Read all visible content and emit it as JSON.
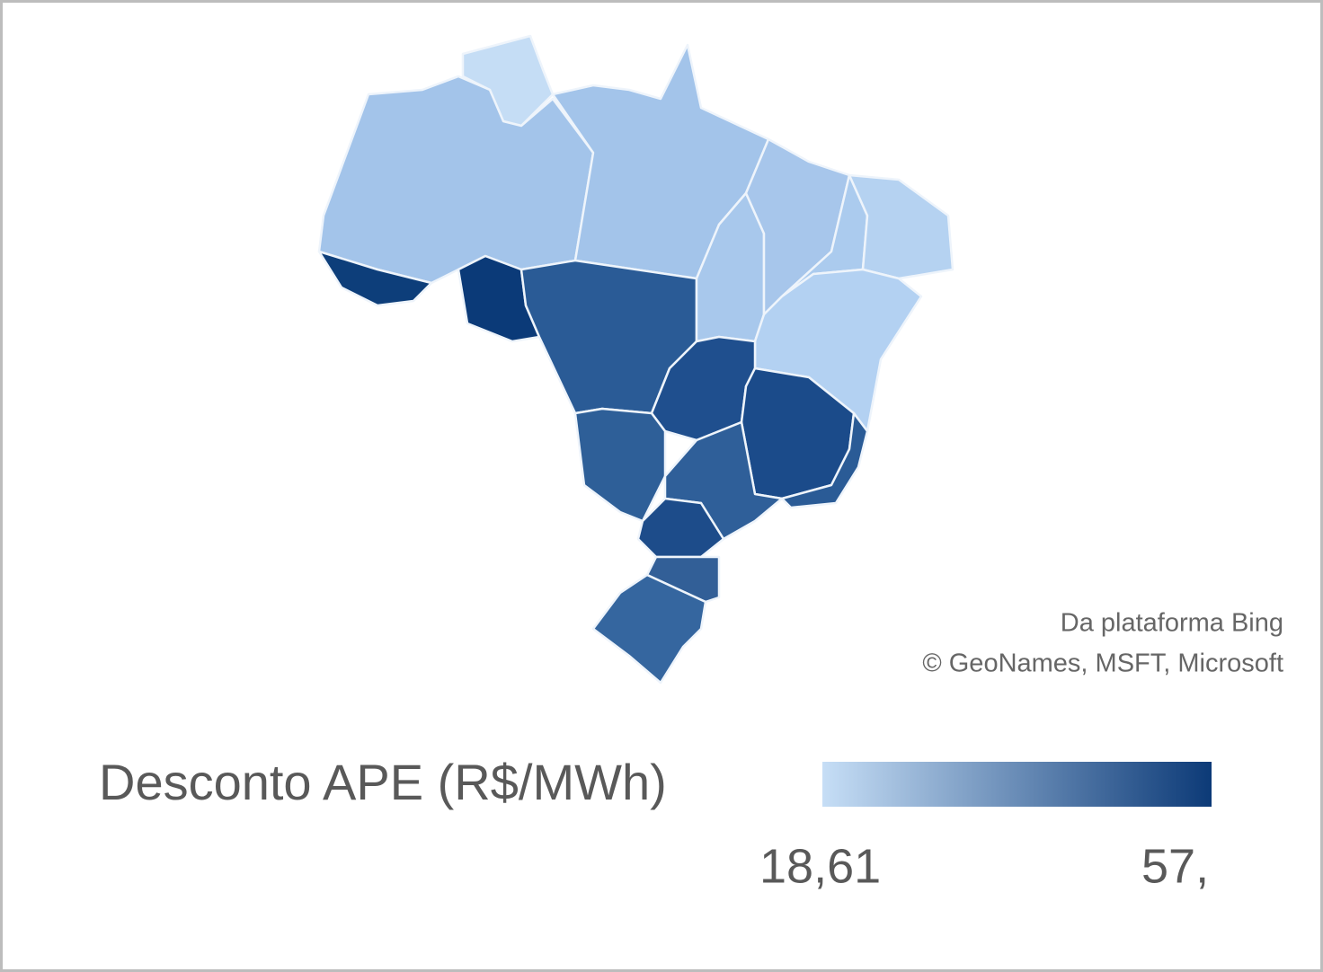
{
  "attribution": [
    "Da plataforma Bing",
    "© GeoNames, MSFT, Microsoft"
  ],
  "legend": {
    "title": "Desconto APE (R$/MWh)",
    "min_label": "18,61",
    "max_label": "57,"
  }
}
